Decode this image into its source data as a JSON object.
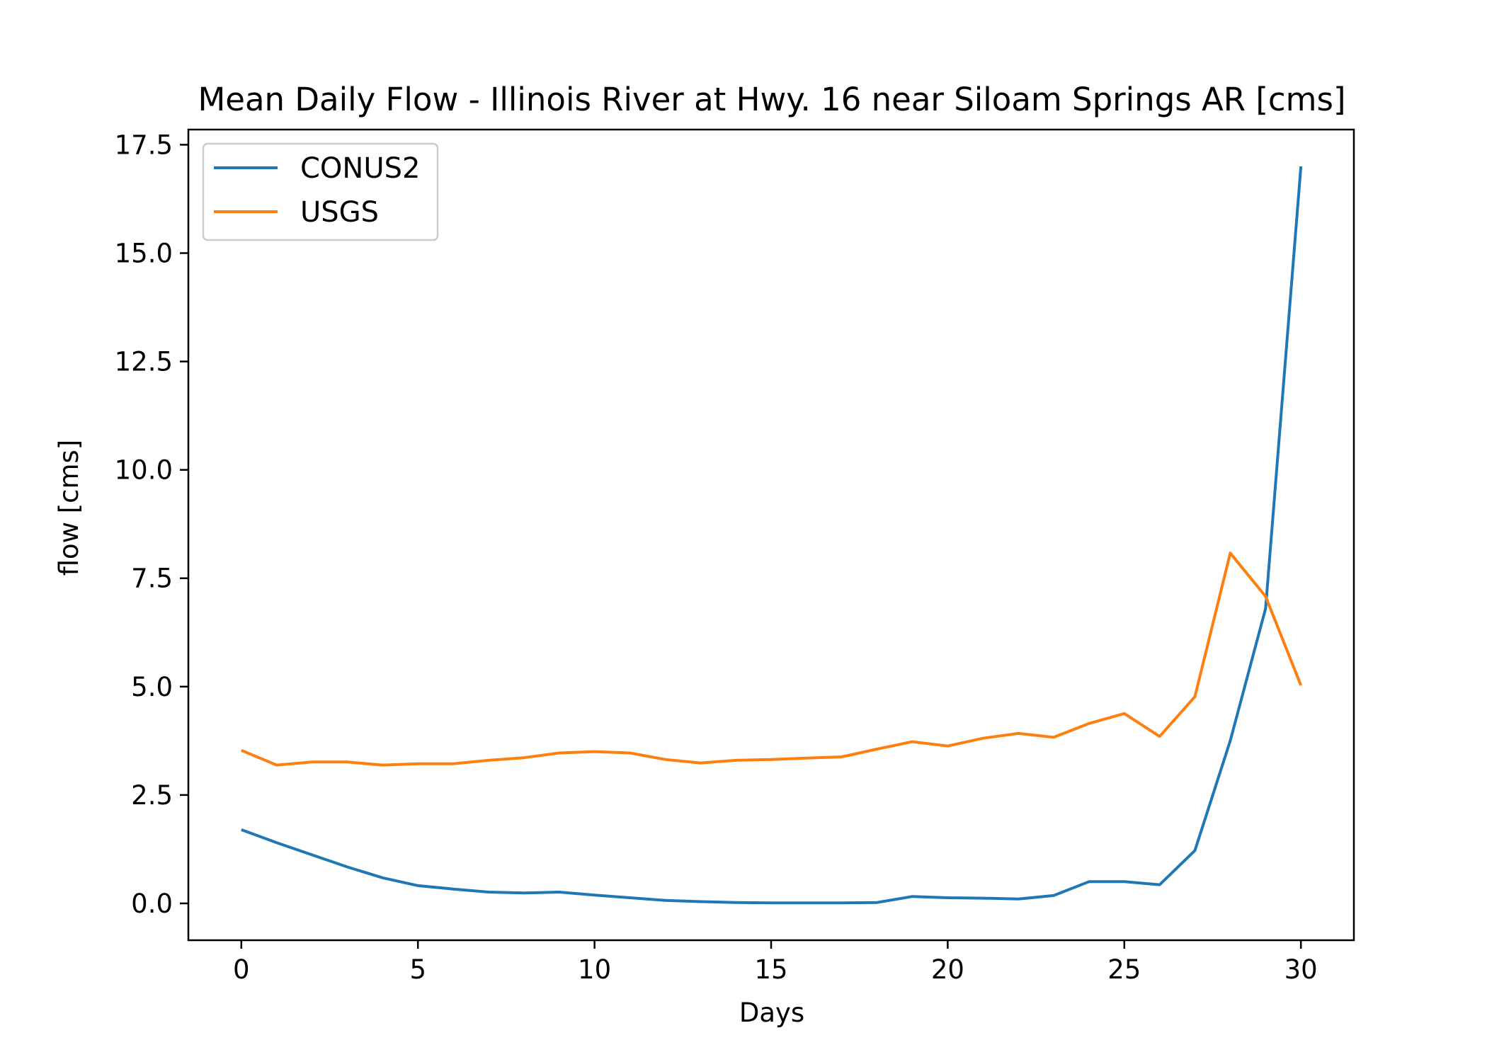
{
  "chart_data": {
    "type": "line",
    "title": "Mean Daily Flow - Illinois River at Hwy. 16 near Siloam Springs AR [cms]",
    "xlabel": "Days",
    "ylabel": "flow [cms]",
    "xlim": [
      -1.5,
      31.5
    ],
    "ylim": [
      -0.85,
      17.85
    ],
    "xticks": [
      0,
      5,
      10,
      15,
      20,
      25,
      30
    ],
    "xtick_labels": [
      "0",
      "5",
      "10",
      "15",
      "20",
      "25",
      "30"
    ],
    "yticks": [
      0,
      2.5,
      5,
      7.5,
      10,
      12.5,
      15,
      17.5
    ],
    "ytick_labels": [
      "0.0",
      "2.5",
      "5.0",
      "7.5",
      "10.0",
      "12.5",
      "15.0",
      "17.5"
    ],
    "grid": false,
    "legend_position": "top-left",
    "x": [
      0,
      1,
      2,
      3,
      4,
      5,
      6,
      7,
      8,
      9,
      10,
      11,
      12,
      13,
      14,
      15,
      16,
      17,
      18,
      19,
      20,
      21,
      22,
      23,
      24,
      25,
      26,
      27,
      28,
      29,
      30
    ],
    "series": [
      {
        "name": "CONUS2",
        "color": "#1f77b4",
        "values": [
          1.7,
          1.4,
          1.12,
          0.84,
          0.59,
          0.41,
          0.33,
          0.26,
          0.24,
          0.26,
          0.19,
          0.13,
          0.07,
          0.04,
          0.02,
          0.01,
          0.01,
          0.01,
          0.02,
          0.16,
          0.13,
          0.12,
          0.1,
          0.18,
          0.5,
          0.5,
          0.43,
          1.22,
          3.75,
          6.8,
          17.0
        ]
      },
      {
        "name": "USGS",
        "color": "#ff7f0e",
        "values": [
          3.53,
          3.19,
          3.26,
          3.26,
          3.19,
          3.22,
          3.22,
          3.3,
          3.36,
          3.47,
          3.5,
          3.47,
          3.32,
          3.24,
          3.3,
          3.32,
          3.35,
          3.38,
          3.56,
          3.73,
          3.63,
          3.81,
          3.92,
          3.83,
          4.15,
          4.38,
          3.85,
          4.77,
          8.08,
          7.08,
          5.03
        ]
      }
    ]
  }
}
